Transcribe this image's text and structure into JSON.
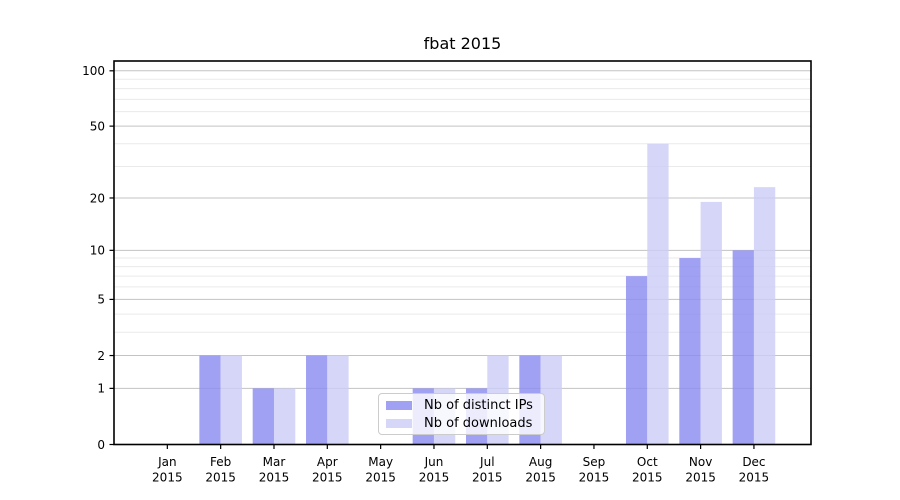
{
  "chart_data": {
    "type": "bar",
    "title": "fbat 2015",
    "categories": [
      "Jan",
      "Feb",
      "Mar",
      "Apr",
      "May",
      "Jun",
      "Jul",
      "Aug",
      "Sep",
      "Oct",
      "Nov",
      "Dec"
    ],
    "category_year": "2015",
    "series": [
      {
        "name": "Nb of distinct IPs",
        "color": "#8c8cf0",
        "values": [
          0,
          2,
          1,
          2,
          0,
          1,
          1,
          2,
          0,
          7,
          9,
          10
        ]
      },
      {
        "name": "Nb of downloads",
        "color": "#cdcdf7",
        "values": [
          0,
          2,
          1,
          2,
          0,
          1,
          2,
          2,
          0,
          40,
          19,
          23
        ]
      }
    ],
    "ylabel": "",
    "xlabel": "",
    "yscale": "symlog-log1p",
    "ylim": [
      0,
      113
    ],
    "yticks": [
      0,
      1,
      2,
      5,
      10,
      20,
      50,
      100
    ],
    "minor_gridlines": [
      3,
      4,
      6,
      7,
      8,
      9,
      30,
      40,
      60,
      70,
      80,
      90
    ],
    "grid": true,
    "legend_position": "lower center inside",
    "colors": {
      "major_grid": "#c3c3c3",
      "minor_grid": "#eaeaea",
      "axis": "#000000",
      "tick_label": "#000000",
      "background": "#ffffff"
    }
  }
}
